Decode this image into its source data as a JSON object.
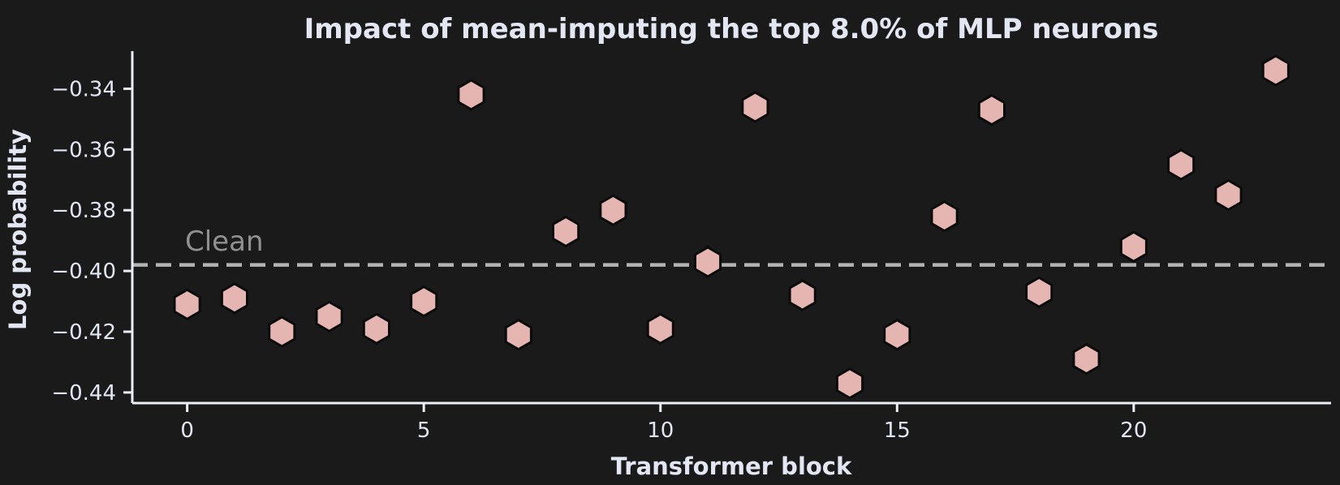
{
  "figure": {
    "title": "Impact of mean-imputing the top 8.0% of MLP neurons",
    "xlabel": "Transformer block",
    "ylabel": "Log probability",
    "clean_line_label": "Clean"
  },
  "colors": {
    "background": "#1a1a1a",
    "text": "#e3e6f3",
    "spine": "#eceef6",
    "marker_fill": "#e5b5b1",
    "marker_edge": "#0b0b0b",
    "clean_line": "#b3b3b3",
    "clean_text": "#919191"
  },
  "chart_data": {
    "type": "scatter",
    "marker": "hexagon",
    "title": "Impact of mean-imputing the top 8.0% of MLP neurons",
    "xlabel": "Transformer block",
    "ylabel": "Log probability",
    "x": [
      0,
      1,
      2,
      3,
      4,
      5,
      6,
      7,
      8,
      9,
      10,
      11,
      12,
      13,
      14,
      15,
      16,
      17,
      18,
      19,
      20,
      21,
      22,
      23
    ],
    "y": [
      -0.411,
      -0.409,
      -0.42,
      -0.415,
      -0.419,
      -0.41,
      -0.342,
      -0.421,
      -0.387,
      -0.38,
      -0.419,
      -0.397,
      -0.346,
      -0.408,
      -0.437,
      -0.421,
      -0.382,
      -0.347,
      -0.407,
      -0.429,
      -0.392,
      -0.365,
      -0.375,
      -0.334
    ],
    "reference_line": {
      "label": "Clean",
      "value": -0.398,
      "style": "dashed",
      "orientation": "horizontal"
    },
    "xlim": [
      -1.16,
      24.17
    ],
    "ylim": [
      -0.4435,
      -0.3276
    ],
    "xticks": {
      "values": [
        0,
        5,
        10,
        15,
        20
      ],
      "labels": [
        "0",
        "5",
        "10",
        "15",
        "20"
      ]
    },
    "yticks": {
      "values": [
        -0.34,
        -0.36,
        -0.38,
        -0.4,
        -0.42,
        -0.44
      ],
      "labels": [
        "−0.34",
        "−0.36",
        "−0.38",
        "−0.40",
        "−0.42",
        "−0.44"
      ]
    },
    "grid": false,
    "legend": "none",
    "spines": [
      "left",
      "bottom"
    ]
  }
}
